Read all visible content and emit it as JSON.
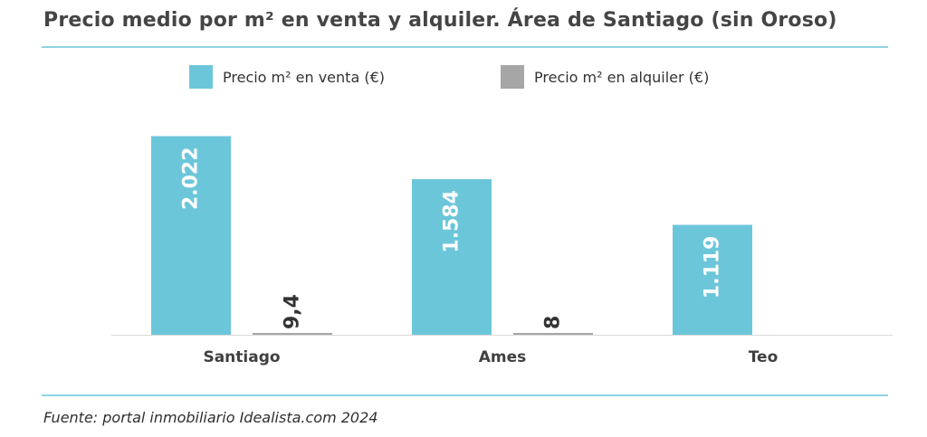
{
  "header": {
    "title": "Precio medio por m² en venta y alquiler. Área de Santiago (sin Oroso)"
  },
  "legend": [
    {
      "label": "Precio m² en venta (€)",
      "color": "#6cc6da"
    },
    {
      "label": "Precio m² en alquiler (€)",
      "color": "#a6a6a6"
    }
  ],
  "footer": {
    "source": "Fuente: portal inmobiliario Idealista.com 2024"
  },
  "chart_data": {
    "type": "bar",
    "title": "Precio medio por m² en venta y alquiler. Área de Santiago (sin Oroso)",
    "categories": [
      "Santiago",
      "Ames",
      "Teo"
    ],
    "series": [
      {
        "name": "Precio m² en venta (€)",
        "color": "#6cc6da",
        "values": [
          2022,
          1584,
          1119
        ],
        "labels": [
          "2.022",
          "1.584",
          "1.119"
        ]
      },
      {
        "name": "Precio m² en alquiler (€)",
        "color": "#a6a6a6",
        "values": [
          9.4,
          8,
          null
        ],
        "labels": [
          "9,4",
          "8",
          ""
        ]
      }
    ],
    "xlabel": "",
    "ylabel": "",
    "ylim": [
      0,
      2100
    ],
    "grid": false,
    "legend_position": "top"
  }
}
